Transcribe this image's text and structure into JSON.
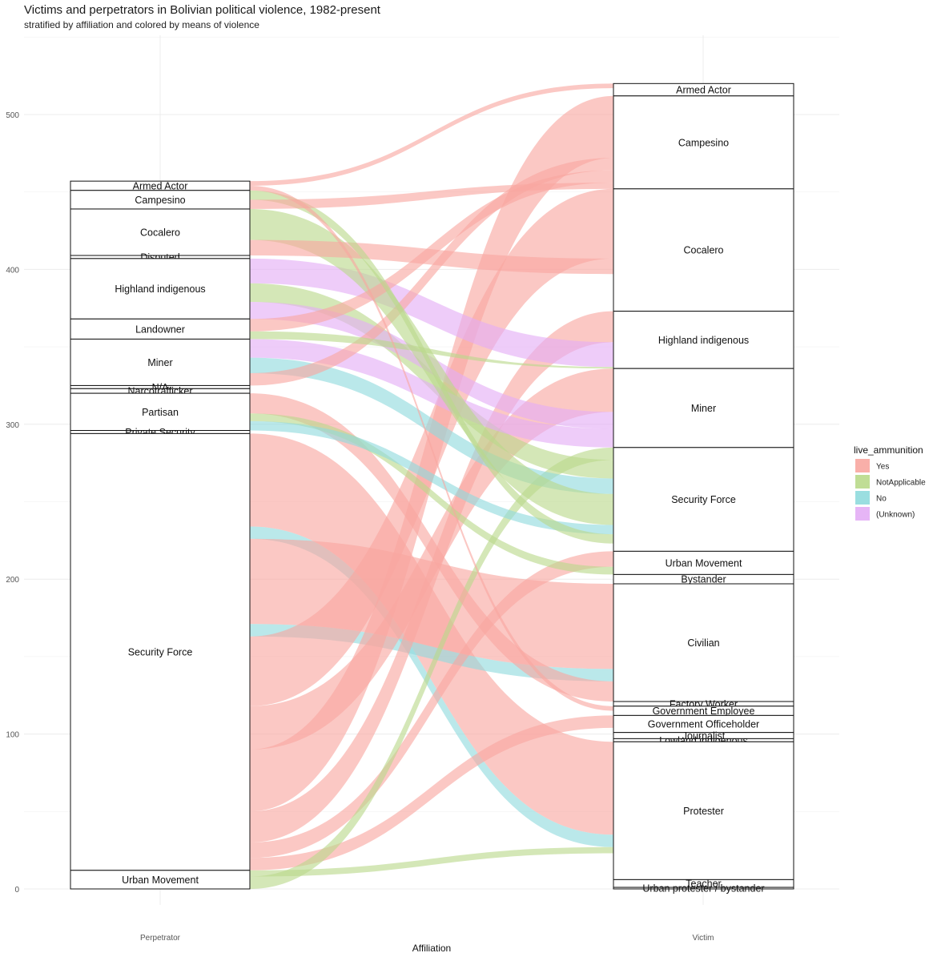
{
  "chart_data": {
    "type": "alluvial",
    "title": "Victims and perpetrators in Bolivian political violence, 1982-present",
    "subtitle": "stratified by affiliation and colored by means of violence",
    "xlabel": "Affiliation",
    "ylabel": "",
    "x": [
      "Perpetrator",
      "Victim"
    ],
    "yticks": [
      0,
      100,
      200,
      300,
      400,
      500
    ],
    "ylim": [
      0,
      525
    ],
    "legend": {
      "title": "live_ammunition",
      "placement": "right",
      "items": [
        {
          "label": "Yes",
          "color": "#F8A6A0"
        },
        {
          "label": "NotApplicable",
          "color": "#B9D98A"
        },
        {
          "label": "No",
          "color": "#8FDADD"
        },
        {
          "label": "(Unknown)",
          "color": "#E3ADF5"
        }
      ]
    },
    "perpetrator_strata": [
      {
        "label": "Armed Actor",
        "ymin": 451,
        "ymax": 457
      },
      {
        "label": "Campesino",
        "ymin": 439,
        "ymax": 451
      },
      {
        "label": "Cocalero",
        "ymin": 409,
        "ymax": 439
      },
      {
        "label": "Disputed",
        "ymin": 407,
        "ymax": 409
      },
      {
        "label": "Highland indigenous",
        "ymin": 368,
        "ymax": 407
      },
      {
        "label": "Landowner",
        "ymin": 355,
        "ymax": 368
      },
      {
        "label": "Miner",
        "ymin": 325,
        "ymax": 355
      },
      {
        "label": "N/A",
        "ymin": 323,
        "ymax": 325
      },
      {
        "label": "Narcotrafficker",
        "ymin": 320,
        "ymax": 323
      },
      {
        "label": "Partisan",
        "ymin": 296,
        "ymax": 320
      },
      {
        "label": "Private Security",
        "ymin": 294,
        "ymax": 296
      },
      {
        "label": "Security Force",
        "ymin": 12,
        "ymax": 294
      },
      {
        "label": "Urban Movement",
        "ymin": 0,
        "ymax": 12
      }
    ],
    "victim_strata": [
      {
        "label": "Armed Actor",
        "ymin": 512,
        "ymax": 520
      },
      {
        "label": "Campesino",
        "ymin": 452,
        "ymax": 512
      },
      {
        "label": "Cocalero",
        "ymin": 373,
        "ymax": 452
      },
      {
        "label": "Highland indigenous",
        "ymin": 336,
        "ymax": 373
      },
      {
        "label": "Miner",
        "ymin": 285,
        "ymax": 336
      },
      {
        "label": "Security Force",
        "ymin": 218,
        "ymax": 285
      },
      {
        "label": "Urban Movement",
        "ymin": 203,
        "ymax": 218
      },
      {
        "label": "Bystander",
        "ymin": 197,
        "ymax": 203
      },
      {
        "label": "Civilian",
        "ymin": 121,
        "ymax": 197
      },
      {
        "label": "Factory Worker",
        "ymin": 118,
        "ymax": 121
      },
      {
        "label": "Government Employee",
        "ymin": 112,
        "ymax": 118
      },
      {
        "label": "Government Officeholder",
        "ymin": 101,
        "ymax": 112
      },
      {
        "label": "Journalist",
        "ymin": 97,
        "ymax": 101
      },
      {
        "label": "Lowland indigenous",
        "ymin": 95,
        "ymax": 97
      },
      {
        "label": "Protester",
        "ymin": 6,
        "ymax": 95
      },
      {
        "label": "Teacher",
        "ymin": 1,
        "ymax": 6
      },
      {
        "label": "Urban protester / bystander",
        "ymin": 0,
        "ymax": 1
      }
    ],
    "flows": [
      {
        "from": "Security Force",
        "to": "Protester",
        "category": "Yes",
        "value": 60
      },
      {
        "from": "Security Force",
        "to": "Protester",
        "category": "No",
        "value": 8
      },
      {
        "from": "Security Force",
        "to": "Civilian",
        "category": "Yes",
        "value": 55
      },
      {
        "from": "Security Force",
        "to": "Civilian",
        "category": "No",
        "value": 8
      },
      {
        "from": "Security Force",
        "to": "Cocalero",
        "category": "Yes",
        "value": 45
      },
      {
        "from": "Security Force",
        "to": "Miner",
        "category": "Yes",
        "value": 28
      },
      {
        "from": "Security Force",
        "to": "Campesino",
        "category": "Yes",
        "value": 40
      },
      {
        "from": "Security Force",
        "to": "Highland indigenous",
        "category": "Yes",
        "value": 20
      },
      {
        "from": "Security Force",
        "to": "Urban Movement",
        "category": "Yes",
        "value": 10
      },
      {
        "from": "Security Force",
        "to": "Government Officeholder",
        "category": "Yes",
        "value": 8
      },
      {
        "from": "Urban Movement",
        "to": "Protester",
        "category": "NotApplicable",
        "value": 4
      },
      {
        "from": "Urban Movement",
        "to": "Security Force",
        "category": "NotApplicable",
        "value": 8
      },
      {
        "from": "Highland indigenous",
        "to": "Highland indigenous",
        "category": "(Unknown)",
        "value": 16
      },
      {
        "from": "Highland indigenous",
        "to": "Security Force",
        "category": "NotApplicable",
        "value": 12
      },
      {
        "from": "Highland indigenous",
        "to": "Miner",
        "category": "(Unknown)",
        "value": 11
      },
      {
        "from": "Miner",
        "to": "Miner",
        "category": "(Unknown)",
        "value": 12
      },
      {
        "from": "Miner",
        "to": "Security Force",
        "category": "No",
        "value": 10
      },
      {
        "from": "Miner",
        "to": "Campesino",
        "category": "Yes",
        "value": 8
      },
      {
        "from": "Cocalero",
        "to": "Security Force",
        "category": "NotApplicable",
        "value": 20
      },
      {
        "from": "Cocalero",
        "to": "Cocalero",
        "category": "Yes",
        "value": 10
      },
      {
        "from": "Partisan",
        "to": "Partisan",
        "category": "Yes",
        "value": 0
      },
      {
        "from": "Partisan",
        "to": "Civilian",
        "category": "Yes",
        "value": 13
      },
      {
        "from": "Partisan",
        "to": "Urban Movement",
        "category": "NotApplicable",
        "value": 5
      },
      {
        "from": "Partisan",
        "to": "Security Force",
        "category": "No",
        "value": 6
      },
      {
        "from": "Landowner",
        "to": "Campesino",
        "category": "Yes",
        "value": 8
      },
      {
        "from": "Landowner",
        "to": "Highland indigenous",
        "category": "NotApplicable",
        "value": 5
      },
      {
        "from": "Campesino",
        "to": "Security Force",
        "category": "NotApplicable",
        "value": 6
      },
      {
        "from": "Campesino",
        "to": "Campesino",
        "category": "Yes",
        "value": 6
      },
      {
        "from": "Armed Actor",
        "to": "Armed Actor",
        "category": "Yes",
        "value": 3
      },
      {
        "from": "Armed Actor",
        "to": "Government Employee",
        "category": "Yes",
        "value": 3
      }
    ]
  }
}
